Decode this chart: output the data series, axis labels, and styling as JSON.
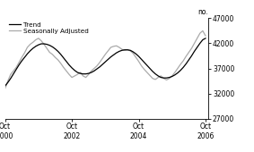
{
  "title": "",
  "ylabel": "no.",
  "ylim": [
    27000,
    47000
  ],
  "yticks": [
    27000,
    32000,
    37000,
    42000,
    47000
  ],
  "xlim_months": [
    0,
    73
  ],
  "xtick_positions": [
    0,
    24,
    48,
    72
  ],
  "xtick_labels_line1": [
    "Oct",
    "Oct",
    "Oct",
    "Oct"
  ],
  "xtick_labels_line2": [
    "2000",
    "2002",
    "2004",
    "2006"
  ],
  "legend_entries": [
    "Trend",
    "Seasonally Adjusted"
  ],
  "trend_color": "#000000",
  "seasonal_color": "#aaaaaa",
  "background_color": "#ffffff",
  "trend_linewidth": 0.9,
  "seasonal_linewidth": 0.9,
  "trend_x": [
    0,
    1,
    2,
    3,
    4,
    5,
    6,
    7,
    8,
    9,
    10,
    11,
    12,
    13,
    14,
    15,
    16,
    17,
    18,
    19,
    20,
    21,
    22,
    23,
    24,
    25,
    26,
    27,
    28,
    29,
    30,
    31,
    32,
    33,
    34,
    35,
    36,
    37,
    38,
    39,
    40,
    41,
    42,
    43,
    44,
    45,
    46,
    47,
    48,
    49,
    50,
    51,
    52,
    53,
    54,
    55,
    56,
    57,
    58,
    59,
    60,
    61,
    62,
    63,
    64,
    65,
    66,
    67,
    68,
    69,
    70,
    71,
    72
  ],
  "trend_y": [
    33500,
    34200,
    35000,
    35900,
    36800,
    37700,
    38500,
    39200,
    39900,
    40500,
    41000,
    41400,
    41700,
    41900,
    41900,
    41800,
    41600,
    41300,
    40900,
    40400,
    39800,
    39100,
    38400,
    37700,
    37100,
    36600,
    36200,
    36000,
    35900,
    35900,
    36000,
    36200,
    36500,
    36900,
    37300,
    37800,
    38300,
    38800,
    39300,
    39700,
    40100,
    40400,
    40600,
    40700,
    40700,
    40600,
    40300,
    39900,
    39400,
    38800,
    38200,
    37600,
    37000,
    36400,
    35900,
    35500,
    35200,
    35100,
    35100,
    35200,
    35400,
    35700,
    36100,
    36600,
    37200,
    37900,
    38700,
    39500,
    40400,
    41200,
    42000,
    42700,
    43000
  ],
  "seasonal_x": [
    0,
    1,
    2,
    3,
    4,
    5,
    6,
    7,
    8,
    9,
    10,
    11,
    12,
    13,
    14,
    15,
    16,
    17,
    18,
    19,
    20,
    21,
    22,
    23,
    24,
    25,
    26,
    27,
    28,
    29,
    30,
    31,
    32,
    33,
    34,
    35,
    36,
    37,
    38,
    39,
    40,
    41,
    42,
    43,
    44,
    45,
    46,
    47,
    48,
    49,
    50,
    51,
    52,
    53,
    54,
    55,
    56,
    57,
    58,
    59,
    60,
    61,
    62,
    63,
    64,
    65,
    66,
    67,
    68,
    69,
    70,
    71,
    72
  ],
  "seasonal_y": [
    33000,
    34500,
    35800,
    36500,
    37200,
    38200,
    39200,
    40100,
    41200,
    41800,
    42200,
    42700,
    43000,
    42500,
    41800,
    41000,
    40200,
    39800,
    39200,
    38700,
    38000,
    37200,
    36500,
    35800,
    35200,
    35500,
    35800,
    36200,
    35500,
    35200,
    35800,
    36500,
    37000,
    37500,
    38200,
    39000,
    39800,
    40500,
    41200,
    41400,
    41500,
    41200,
    40800,
    40600,
    40700,
    40500,
    40000,
    39200,
    38400,
    37500,
    36800,
    36200,
    35600,
    35000,
    34800,
    35200,
    35500,
    35000,
    34700,
    35000,
    35500,
    36200,
    37000,
    37800,
    38500,
    39400,
    40200,
    41000,
    42000,
    43000,
    44000,
    44500,
    43500
  ]
}
